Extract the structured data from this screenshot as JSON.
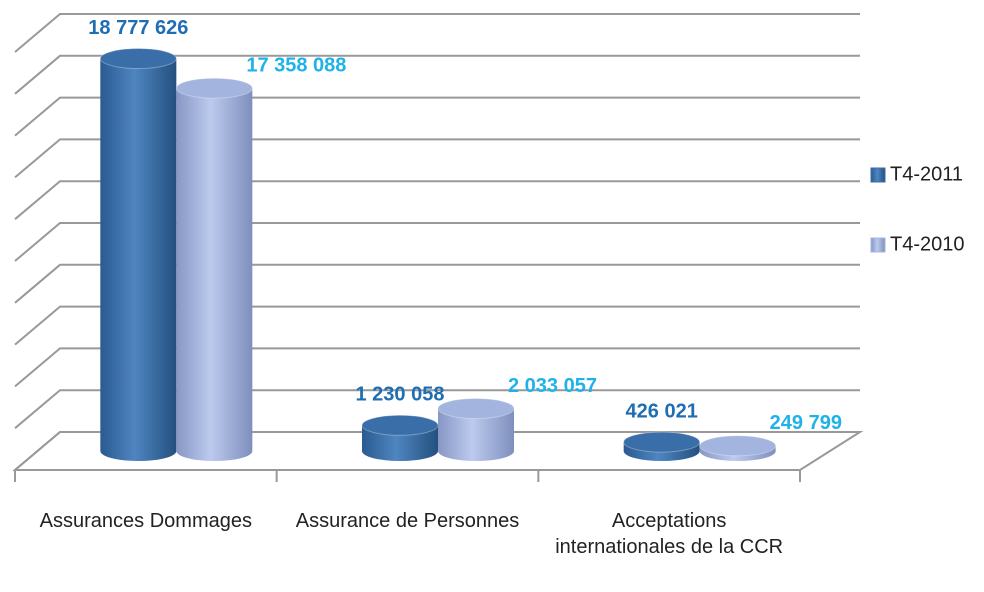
{
  "chart_data": {
    "type": "bar3d",
    "categories": [
      "Assurances Dommages",
      "Assurance de Personnes",
      "Acceptations internationales de la CCR"
    ],
    "series": [
      {
        "name": "T4-2011",
        "color": "#3a6ea8",
        "label_color": "#1f6db3",
        "values": [
          18777626,
          1230058,
          426021
        ],
        "value_labels": [
          "18 777 626",
          "1 230 058",
          "426 021"
        ]
      },
      {
        "name": "T4-2010",
        "color": "#a3b4de",
        "label_color": "#1fb2ea",
        "values": [
          17358088,
          2033057,
          249799
        ],
        "value_labels": [
          "17 358 088",
          "2 033 057",
          "249 799"
        ]
      }
    ],
    "ylim": [
      0,
      20000000
    ],
    "yticks": [
      0,
      2000000,
      4000000,
      6000000,
      8000000,
      10000000,
      12000000,
      14000000,
      16000000,
      18000000,
      20000000
    ],
    "grid": true,
    "legend": "right"
  }
}
